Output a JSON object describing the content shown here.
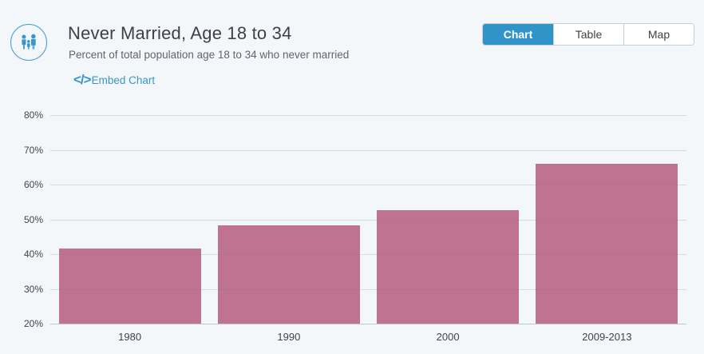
{
  "header": {
    "title": "Never Married, Age 18 to 34",
    "subtitle": "Percent of total population age 18 to 34 who never married",
    "icon": "family-icon",
    "embed": {
      "icon": "embed-code-icon",
      "glyph": "</>",
      "label": "Embed Chart"
    }
  },
  "view_toggle": [
    {
      "label": "Chart",
      "active": true
    },
    {
      "label": "Table",
      "active": false
    },
    {
      "label": "Map",
      "active": false
    }
  ],
  "colors": {
    "background": "#f3f7fa",
    "accent_blue": "#3094c9",
    "link_blue": "#3a96c8",
    "bar": "#bf7390",
    "button_border": "#c8ced4",
    "text_dark": "#3d4248",
    "text_muted": "#60666d"
  },
  "chart_data": {
    "type": "bar",
    "title": "Never Married, Age 18 to 34",
    "subtitle": "Percent of total population age 18 to 34 who never married",
    "categories": [
      "1980",
      "1990",
      "2000",
      "2009-2013"
    ],
    "values": [
      41.5,
      48.2,
      52.6,
      65.9
    ],
    "xlabel": "",
    "ylabel": "",
    "ylim": [
      20,
      80
    ],
    "yticks": [
      20,
      30,
      40,
      50,
      60,
      70,
      80
    ],
    "ytick_format": "{v}%",
    "grid": true,
    "legend": "none",
    "bar_color": "#bf7390"
  }
}
